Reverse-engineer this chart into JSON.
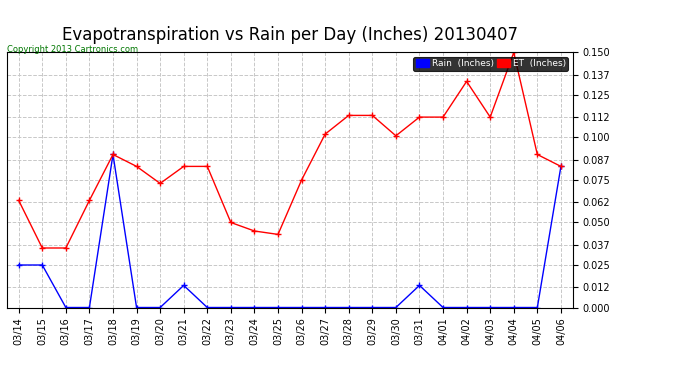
{
  "title": "Evapotranspiration vs Rain per Day (Inches) 20130407",
  "copyright": "Copyright 2013 Cartronics.com",
  "x_labels": [
    "03/14",
    "03/15",
    "03/16",
    "03/17",
    "03/18",
    "03/19",
    "03/20",
    "03/21",
    "03/22",
    "03/23",
    "03/24",
    "03/25",
    "03/26",
    "03/27",
    "03/28",
    "03/29",
    "03/30",
    "03/31",
    "04/01",
    "04/02",
    "04/03",
    "04/04",
    "04/05",
    "04/06"
  ],
  "rain_values": [
    0.025,
    0.025,
    0.0,
    0.0,
    0.09,
    0.0,
    0.0,
    0.013,
    0.0,
    0.0,
    0.0,
    0.0,
    0.0,
    0.0,
    0.0,
    0.0,
    0.0,
    0.013,
    0.0,
    0.0,
    0.0,
    0.0,
    0.0,
    0.083
  ],
  "et_values": [
    0.063,
    0.035,
    0.035,
    0.063,
    0.09,
    0.083,
    0.073,
    0.083,
    0.083,
    0.05,
    0.045,
    0.043,
    0.075,
    0.102,
    0.113,
    0.113,
    0.101,
    0.112,
    0.112,
    0.133,
    0.112,
    0.15,
    0.09,
    0.083
  ],
  "rain_color": "#0000ff",
  "et_color": "#ff0000",
  "ylim": [
    0.0,
    0.15
  ],
  "yticks": [
    0.0,
    0.012,
    0.025,
    0.037,
    0.05,
    0.062,
    0.075,
    0.087,
    0.1,
    0.112,
    0.125,
    0.137,
    0.15
  ],
  "bg_color": "#ffffff",
  "grid_color": "#c8c8c8",
  "title_fontsize": 12,
  "axis_fontsize": 7,
  "copyright_color": "#007700",
  "legend_rain_label": "Rain  (Inches)",
  "legend_et_label": "ET  (Inches)"
}
